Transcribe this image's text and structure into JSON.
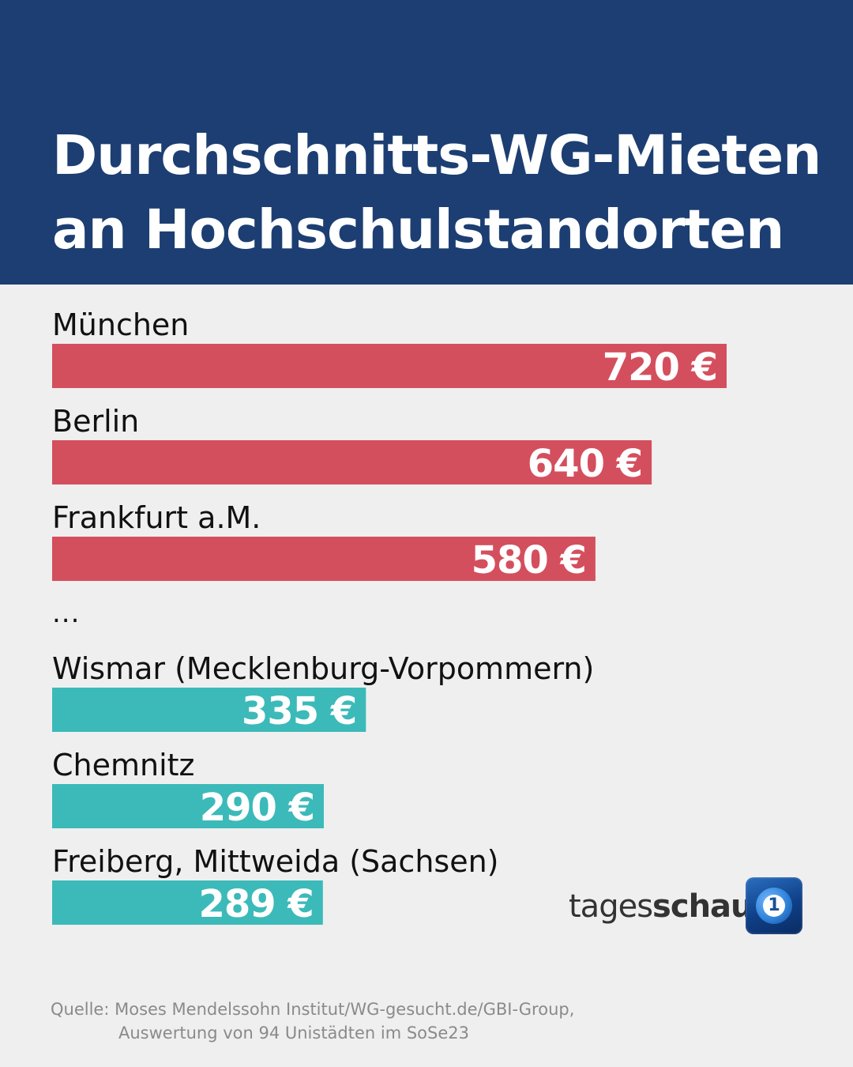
{
  "header": {
    "title_line1": "Durchschnitts-WG-Mieten",
    "title_line2": "an Hochschulstandorten"
  },
  "chart_data": {
    "type": "bar",
    "orientation": "horizontal",
    "title": "Durchschnitts-WG-Mieten an Hochschulstandorten",
    "categories": [
      "München",
      "Berlin",
      "Frankfurt a.M.",
      "Wismar (Mecklenburg-Vorpommern)",
      "Chemnitz",
      "Freiberg, Mittweida (Sachsen)"
    ],
    "values": [
      720,
      640,
      580,
      335,
      290,
      289
    ],
    "value_labels": [
      "720 €",
      "640 €",
      "580 €",
      "335 €",
      "290 €",
      "289 €"
    ],
    "colors": [
      "#d44f5e",
      "#d44f5e",
      "#d44f5e",
      "#3bbab9",
      "#3bbab9",
      "#3bbab9"
    ],
    "gap_marker": "...",
    "xlim": [
      0,
      900
    ],
    "grid": false
  },
  "branding": {
    "logo_light": "tages",
    "logo_bold": "schau",
    "icon_glyph": "1"
  },
  "source": {
    "line1": "Quelle: Moses Mendelssohn Institut/WG-gesucht.de/GBI-Group,",
    "line2": "Auswertung von 94 Unistädten im SoSe23"
  },
  "colors": {
    "header_bg": "#1c3e72",
    "background": "#efefef",
    "high_bar": "#d44f5e",
    "low_bar": "#3bbab9"
  }
}
